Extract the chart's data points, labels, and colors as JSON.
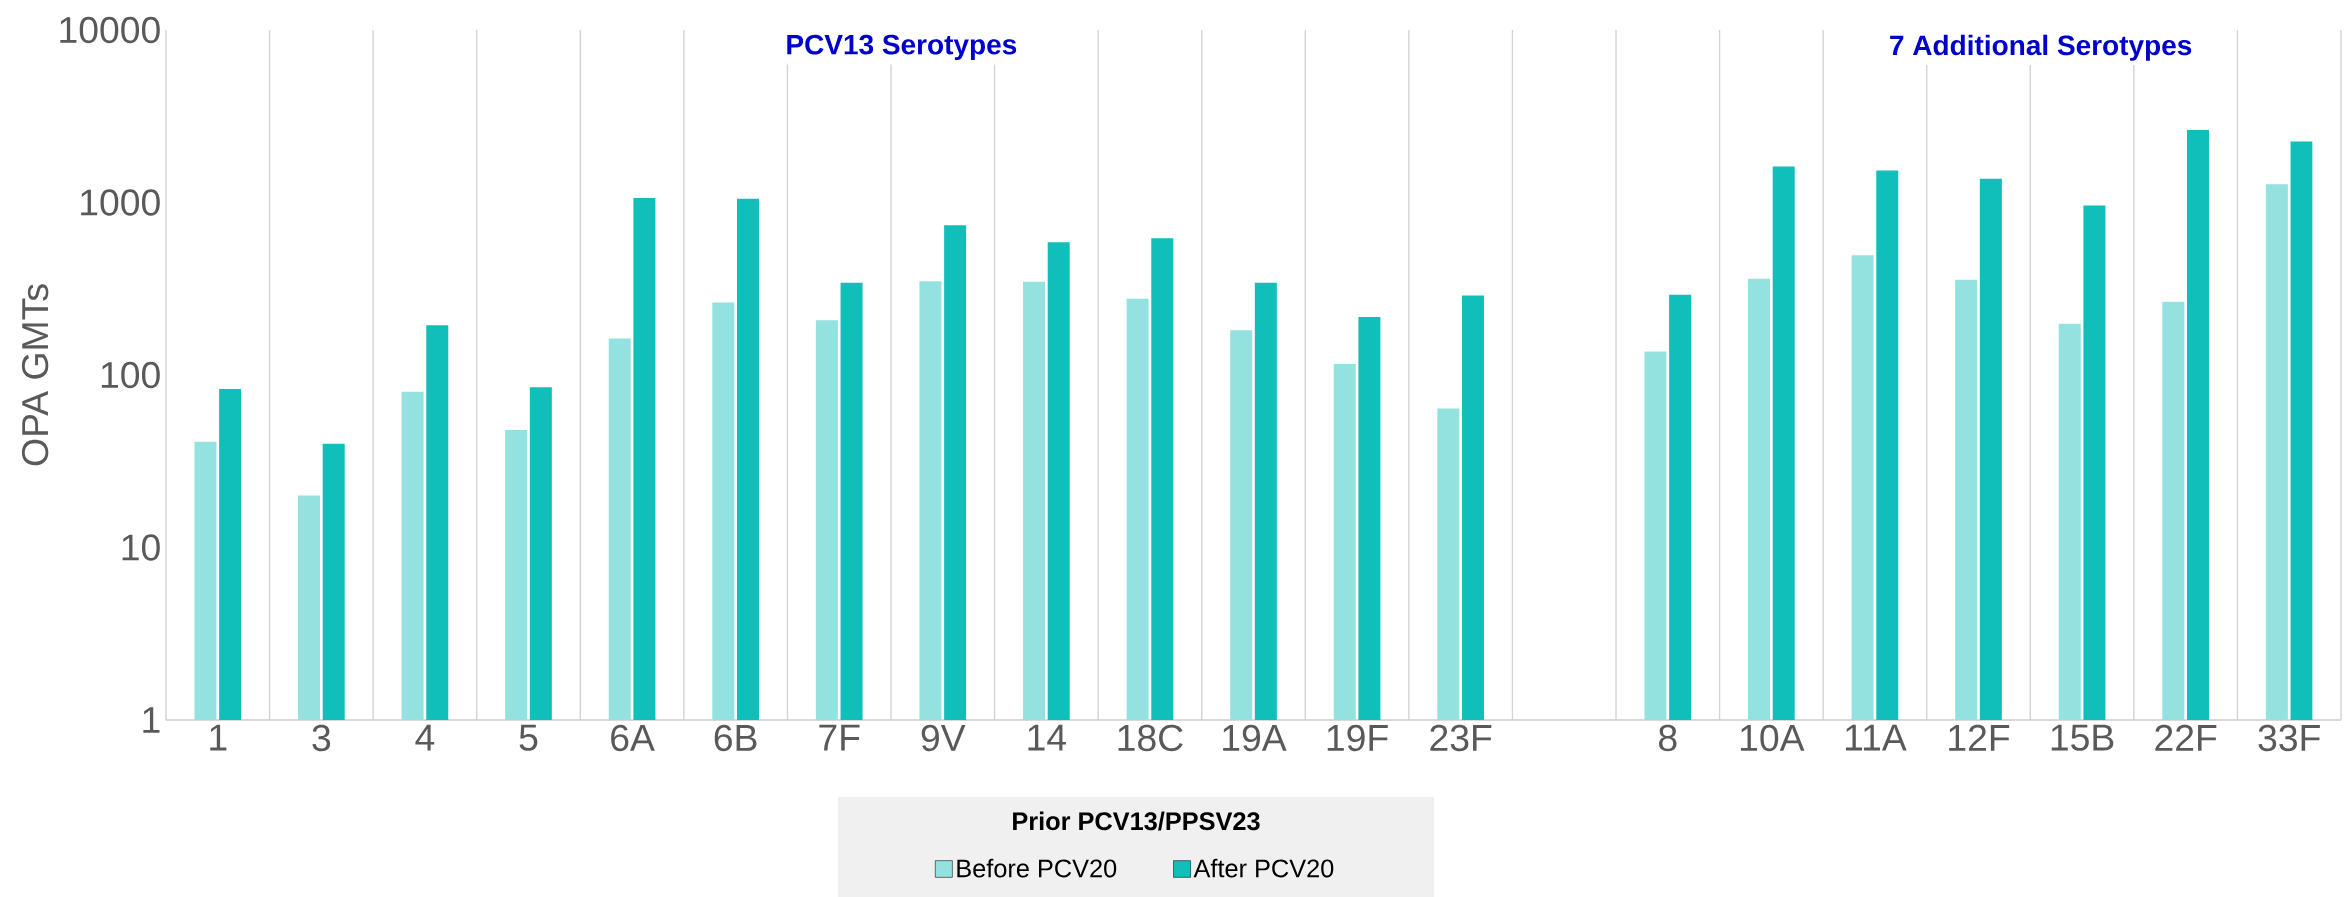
{
  "chart_data": {
    "type": "bar",
    "ylabel": "OPA GMTs",
    "legend_title": "Prior PCV13/PPSV23",
    "annotations": [
      "PCV13 Serotypes",
      "7 Additional Serotypes"
    ],
    "categories": [
      "1",
      "3",
      "4",
      "5",
      "6A",
      "6B",
      "7F",
      "9V",
      "14",
      "18C",
      "19A",
      "19F",
      "23F",
      null,
      "8",
      "10A",
      "11A",
      "12F",
      "15B",
      "22F",
      "33F"
    ],
    "series": [
      {
        "name": "Before PCV20",
        "color": "#93e2e0",
        "values": [
          41,
          20,
          80,
          48,
          163,
          263,
          208,
          350,
          347,
          277,
          182,
          116,
          64,
          null,
          137,
          361,
          495,
          357,
          198,
          266,
          1277
        ]
      },
      {
        "name": "After PCV20",
        "color": "#10bfba",
        "values": [
          83,
          40,
          194,
          85,
          1063,
          1052,
          343,
          737,
          589,
          620,
          343,
          217,
          289,
          null,
          292,
          1615,
          1534,
          1371,
          960,
          2630,
          2259
        ]
      }
    ],
    "log": "y",
    "ylim": [
      1,
      10000
    ],
    "yticks": [
      1,
      10,
      100,
      1000,
      10000
    ],
    "grid": "x",
    "legend": "bottom"
  }
}
